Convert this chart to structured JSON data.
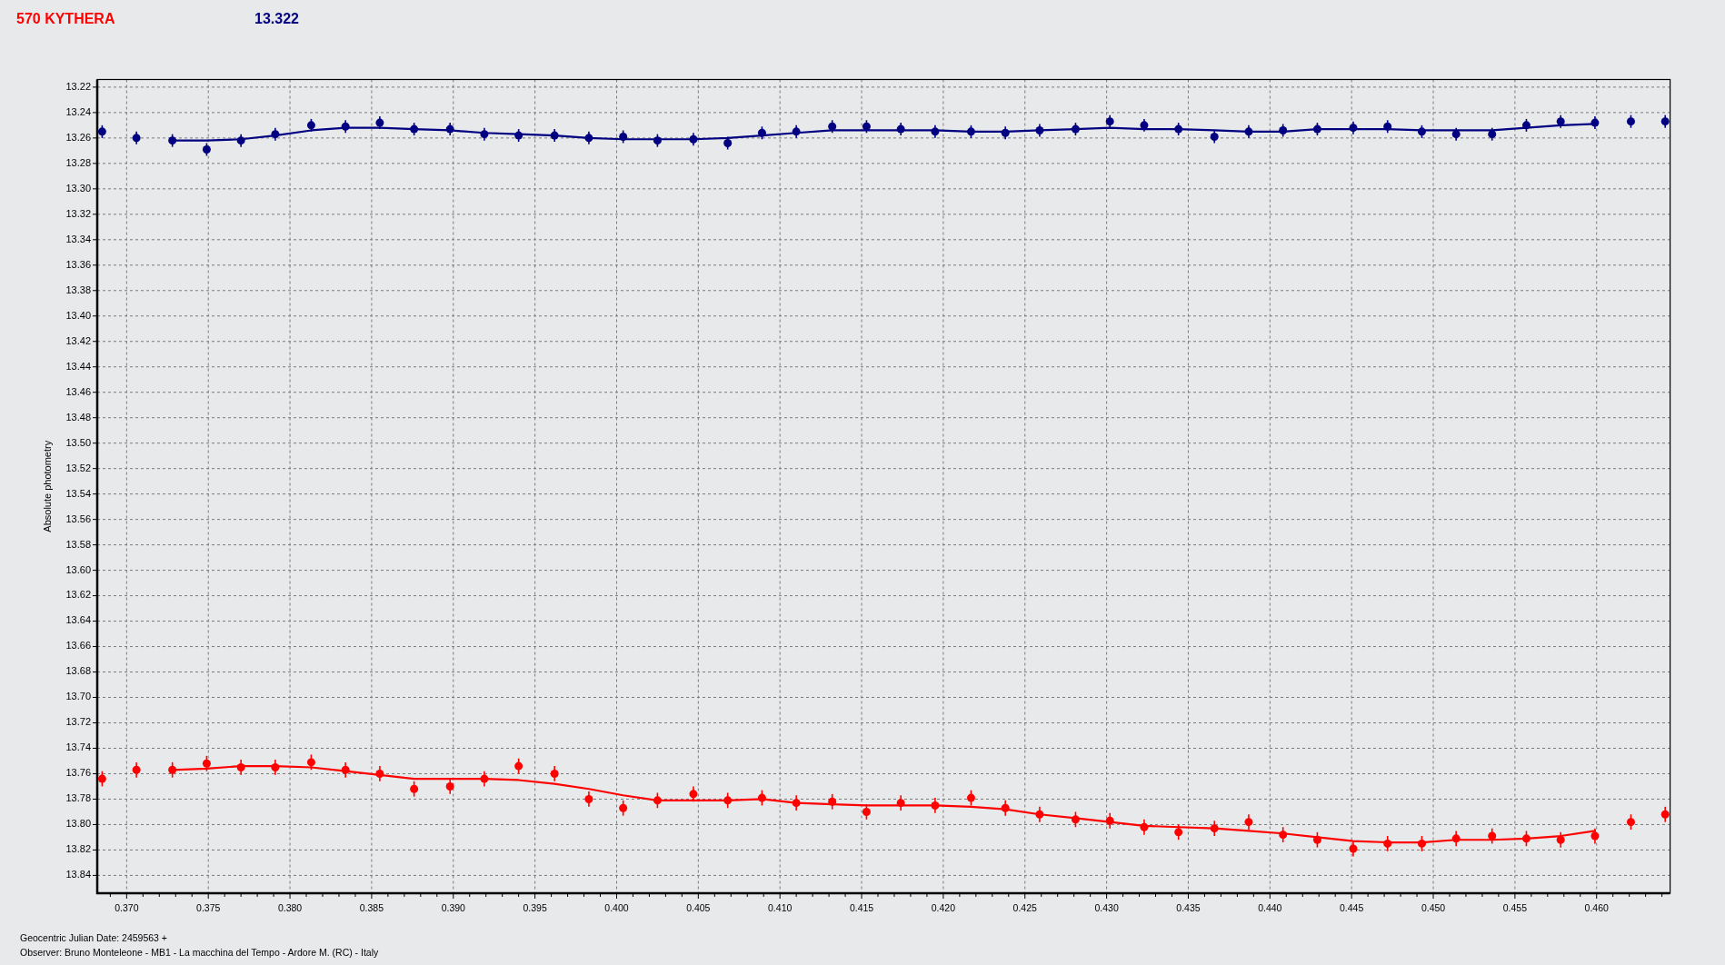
{
  "chart_data": {
    "type": "scatter",
    "xlabel": "Geocentric Julian Date: 2459563 +",
    "ylabel": "Absolute photometry",
    "annotations": [
      "Observer: Bruno Monteleone - MB1 - La macchina del Tempo - Ardore M. (RC) - Italy"
    ],
    "x": [
      0.3685,
      0.3706,
      0.3728,
      0.3749,
      0.377,
      0.3791,
      0.3813,
      0.3834,
      0.3855,
      0.3876,
      0.3898,
      0.3919,
      0.394,
      0.3962,
      0.3983,
      0.4004,
      0.4025,
      0.4047,
      0.4068,
      0.4089,
      0.411,
      0.4132,
      0.4153,
      0.4174,
      0.4195,
      0.4217,
      0.4238,
      0.4259,
      0.4281,
      0.4302,
      0.4323,
      0.4344,
      0.4366,
      0.4387,
      0.4408,
      0.4429,
      0.4451,
      0.4472,
      0.4493,
      0.4514,
      0.4536,
      0.4557,
      0.4578,
      0.4599,
      0.4621,
      0.4642
    ],
    "series": [
      {
        "name": "570 KYTHERA",
        "color": "#ff0000",
        "marker": "circle",
        "values": [
          13.764,
          13.757,
          13.757,
          13.752,
          13.755,
          13.755,
          13.751,
          13.757,
          13.76,
          13.772,
          13.77,
          13.764,
          13.754,
          13.76,
          13.78,
          13.787,
          13.781,
          13.776,
          13.781,
          13.779,
          13.783,
          13.782,
          13.79,
          13.783,
          13.785,
          13.779,
          13.787,
          13.792,
          13.796,
          13.797,
          13.802,
          13.806,
          13.803,
          13.798,
          13.808,
          13.812,
          13.819,
          13.815,
          13.815,
          13.811,
          13.809,
          13.811,
          13.812,
          13.809,
          13.798,
          13.792
        ],
        "errors": [
          0.006,
          0.006,
          0.006,
          0.006,
          0.006,
          0.006,
          0.006,
          0.006,
          0.006,
          0.006,
          0.006,
          0.006,
          0.006,
          0.006,
          0.006,
          0.006,
          0.006,
          0.006,
          0.006,
          0.006,
          0.006,
          0.006,
          0.006,
          0.006,
          0.006,
          0.006,
          0.006,
          0.006,
          0.006,
          0.006,
          0.006,
          0.006,
          0.006,
          0.006,
          0.006,
          0.006,
          0.006,
          0.006,
          0.006,
          0.006,
          0.006,
          0.006,
          0.006,
          0.006,
          0.006,
          0.006
        ]
      },
      {
        "name": "13.322",
        "color": "#000080",
        "marker": "circle",
        "values": [
          13.255,
          13.26,
          13.262,
          13.269,
          13.262,
          13.257,
          13.25,
          13.251,
          13.248,
          13.253,
          13.253,
          13.257,
          13.258,
          13.258,
          13.26,
          13.259,
          13.262,
          13.261,
          13.264,
          13.256,
          13.255,
          13.251,
          13.251,
          13.253,
          13.255,
          13.255,
          13.256,
          13.254,
          13.253,
          13.247,
          13.25,
          13.253,
          13.259,
          13.255,
          13.254,
          13.253,
          13.252,
          13.251,
          13.255,
          13.257,
          13.257,
          13.25,
          13.247,
          13.248,
          13.247,
          13.247
        ],
        "errors": [
          0.005,
          0.005,
          0.005,
          0.005,
          0.005,
          0.005,
          0.005,
          0.005,
          0.005,
          0.005,
          0.005,
          0.005,
          0.005,
          0.005,
          0.005,
          0.005,
          0.005,
          0.005,
          0.005,
          0.005,
          0.005,
          0.005,
          0.005,
          0.005,
          0.005,
          0.005,
          0.005,
          0.005,
          0.005,
          0.005,
          0.005,
          0.005,
          0.005,
          0.005,
          0.005,
          0.005,
          0.005,
          0.005,
          0.005,
          0.005,
          0.005,
          0.005,
          0.005,
          0.005,
          0.005,
          0.005
        ]
      },
      {
        "type": "line",
        "color": "#ff0000",
        "x": [
          0.3728,
          0.3749,
          0.377,
          0.3791,
          0.3813,
          0.3834,
          0.3855,
          0.3876,
          0.3898,
          0.3919,
          0.394,
          0.3962,
          0.3983,
          0.4004,
          0.4025,
          0.4047,
          0.4068,
          0.4089,
          0.411,
          0.4132,
          0.4153,
          0.4174,
          0.4195,
          0.4217,
          0.4238,
          0.4259,
          0.4281,
          0.4302,
          0.4323,
          0.4344,
          0.4366,
          0.4387,
          0.4408,
          0.4429,
          0.4451,
          0.4472,
          0.4493,
          0.4514,
          0.4536,
          0.4557,
          0.4578,
          0.4599
        ],
        "values": [
          13.757,
          13.756,
          13.754,
          13.754,
          13.755,
          13.758,
          13.761,
          13.764,
          13.764,
          13.764,
          13.765,
          13.768,
          13.772,
          13.777,
          13.781,
          13.781,
          13.781,
          13.78,
          13.783,
          13.784,
          13.785,
          13.785,
          13.785,
          13.786,
          13.788,
          13.792,
          13.795,
          13.798,
          13.801,
          13.802,
          13.803,
          13.805,
          13.807,
          13.81,
          13.813,
          13.814,
          13.814,
          13.812,
          13.812,
          13.811,
          13.809,
          13.805
        ]
      },
      {
        "type": "line",
        "color": "#000080",
        "x": [
          0.3728,
          0.3749,
          0.377,
          0.3791,
          0.3813,
          0.3834,
          0.3855,
          0.3876,
          0.3898,
          0.3919,
          0.394,
          0.3962,
          0.3983,
          0.4004,
          0.4025,
          0.4047,
          0.4068,
          0.4089,
          0.411,
          0.4132,
          0.4153,
          0.4174,
          0.4195,
          0.4217,
          0.4238,
          0.4259,
          0.4281,
          0.4302,
          0.4323,
          0.4344,
          0.4366,
          0.4387,
          0.4408,
          0.4429,
          0.4451,
          0.4472,
          0.4493,
          0.4514,
          0.4536,
          0.4557,
          0.4578,
          0.4599
        ],
        "values": [
          13.262,
          13.262,
          13.261,
          13.258,
          13.254,
          13.252,
          13.252,
          13.253,
          13.254,
          13.256,
          13.257,
          13.258,
          13.26,
          13.261,
          13.261,
          13.261,
          13.26,
          13.258,
          13.256,
          13.254,
          13.254,
          13.254,
          13.254,
          13.255,
          13.255,
          13.254,
          13.253,
          13.252,
          13.253,
          13.253,
          13.254,
          13.255,
          13.255,
          13.253,
          13.253,
          13.253,
          13.254,
          13.254,
          13.254,
          13.252,
          13.25,
          13.249
        ]
      }
    ],
    "xlim": [
      0.3682,
      0.4645
    ],
    "ylim": [
      13.854,
      13.214
    ],
    "xticks": [
      {
        "value": 0.369,
        "label": null
      },
      {
        "value": 0.37,
        "label": "0.370"
      },
      {
        "value": 0.371,
        "label": null
      },
      {
        "value": 0.372,
        "label": null
      },
      {
        "value": 0.373,
        "label": null
      },
      {
        "value": 0.374,
        "label": null
      },
      0.375,
      {
        "value": 0.376,
        "label": null
      },
      {
        "value": 0.377,
        "label": null
      },
      {
        "value": 0.378,
        "label": null
      },
      {
        "value": 0.379,
        "label": null
      },
      {
        "value": 0.38,
        "label": "0.380"
      },
      {
        "value": 0.381,
        "label": null
      },
      {
        "value": 0.382,
        "label": null
      },
      {
        "value": 0.383,
        "label": null
      },
      {
        "value": 0.384,
        "label": null
      },
      0.385,
      {
        "value": 0.386,
        "label": null
      },
      {
        "value": 0.387,
        "label": null
      },
      {
        "value": 0.388,
        "label": null
      },
      {
        "value": 0.389,
        "label": null
      },
      {
        "value": 0.39,
        "label": "0.390"
      },
      {
        "value": 0.391,
        "label": null
      },
      {
        "value": 0.392,
        "label": null
      },
      {
        "value": 0.393,
        "label": null
      },
      {
        "value": 0.394,
        "label": null
      },
      0.395,
      {
        "value": 0.396,
        "label": null
      },
      {
        "value": 0.397,
        "label": null
      },
      {
        "value": 0.398,
        "label": null
      },
      {
        "value": 0.399,
        "label": null
      },
      {
        "value": 0.4,
        "label": "0.400"
      },
      {
        "value": 0.401,
        "label": null
      },
      {
        "value": 0.402,
        "label": null
      },
      {
        "value": 0.403,
        "label": null
      },
      {
        "value": 0.404,
        "label": null
      },
      0.405,
      {
        "value": 0.406,
        "label": null
      },
      {
        "value": 0.407,
        "label": null
      },
      {
        "value": 0.408,
        "label": null
      },
      {
        "value": 0.409,
        "label": null
      },
      {
        "value": 0.41,
        "label": "0.410"
      },
      {
        "value": 0.411,
        "label": null
      },
      {
        "value": 0.412,
        "label": null
      },
      {
        "value": 0.413,
        "label": null
      },
      {
        "value": 0.414,
        "label": null
      },
      0.415,
      {
        "value": 0.416,
        "label": null
      },
      {
        "value": 0.417,
        "label": null
      },
      {
        "value": 0.418,
        "label": null
      },
      {
        "value": 0.419,
        "label": null
      },
      {
        "value": 0.42,
        "label": "0.420"
      },
      {
        "value": 0.421,
        "label": null
      },
      {
        "value": 0.422,
        "label": null
      },
      {
        "value": 0.423,
        "label": null
      },
      {
        "value": 0.424,
        "label": null
      },
      0.425,
      {
        "value": 0.426,
        "label": null
      },
      {
        "value": 0.427,
        "label": null
      },
      {
        "value": 0.428,
        "label": null
      },
      {
        "value": 0.429,
        "label": null
      },
      {
        "value": 0.43,
        "label": "0.430"
      },
      {
        "value": 0.431,
        "label": null
      },
      {
        "value": 0.432,
        "label": null
      },
      {
        "value": 0.433,
        "label": null
      },
      {
        "value": 0.434,
        "label": null
      },
      0.435,
      {
        "value": 0.436,
        "label": null
      },
      {
        "value": 0.437,
        "label": null
      },
      {
        "value": 0.438,
        "label": null
      },
      {
        "value": 0.439,
        "label": null
      },
      {
        "value": 0.44,
        "label": "0.440"
      },
      {
        "value": 0.441,
        "label": null
      },
      {
        "value": 0.442,
        "label": null
      },
      {
        "value": 0.443,
        "label": null
      },
      {
        "value": 0.444,
        "label": null
      },
      0.445,
      {
        "value": 0.446,
        "label": null
      },
      {
        "value": 0.447,
        "label": null
      },
      {
        "value": 0.448,
        "label": null
      },
      {
        "value": 0.449,
        "label": null
      },
      {
        "value": 0.45,
        "label": "0.450"
      },
      {
        "value": 0.451,
        "label": null
      },
      {
        "value": 0.452,
        "label": null
      },
      {
        "value": 0.453,
        "label": null
      },
      {
        "value": 0.454,
        "label": null
      },
      0.455,
      {
        "value": 0.456,
        "label": null
      },
      {
        "value": 0.457,
        "label": null
      },
      {
        "value": 0.458,
        "label": null
      },
      {
        "value": 0.459,
        "label": null
      },
      {
        "value": 0.46,
        "label": "0.460"
      },
      {
        "value": 0.461,
        "label": null
      },
      {
        "value": 0.462,
        "label": null
      },
      {
        "value": 0.463,
        "label": null
      },
      {
        "value": 0.464,
        "label": null
      }
    ],
    "yticks": [
      13.22,
      13.24,
      13.26,
      13.28,
      {
        "value": 13.3,
        "label": "13.30"
      },
      13.32,
      13.34,
      13.36,
      13.38,
      {
        "value": 13.4,
        "label": "13.40"
      },
      13.42,
      13.44,
      13.46,
      13.48,
      {
        "value": 13.5,
        "label": "13.50"
      },
      13.52,
      13.54,
      13.56,
      13.58,
      {
        "value": 13.6,
        "label": "13.60"
      },
      13.62,
      13.64,
      13.66,
      13.68,
      {
        "value": 13.7,
        "label": "13.70"
      },
      13.72,
      13.74,
      13.76,
      13.78,
      {
        "value": 13.8,
        "label": "13.80"
      },
      13.82,
      13.84
    ],
    "grid": true,
    "legend": "top left"
  }
}
